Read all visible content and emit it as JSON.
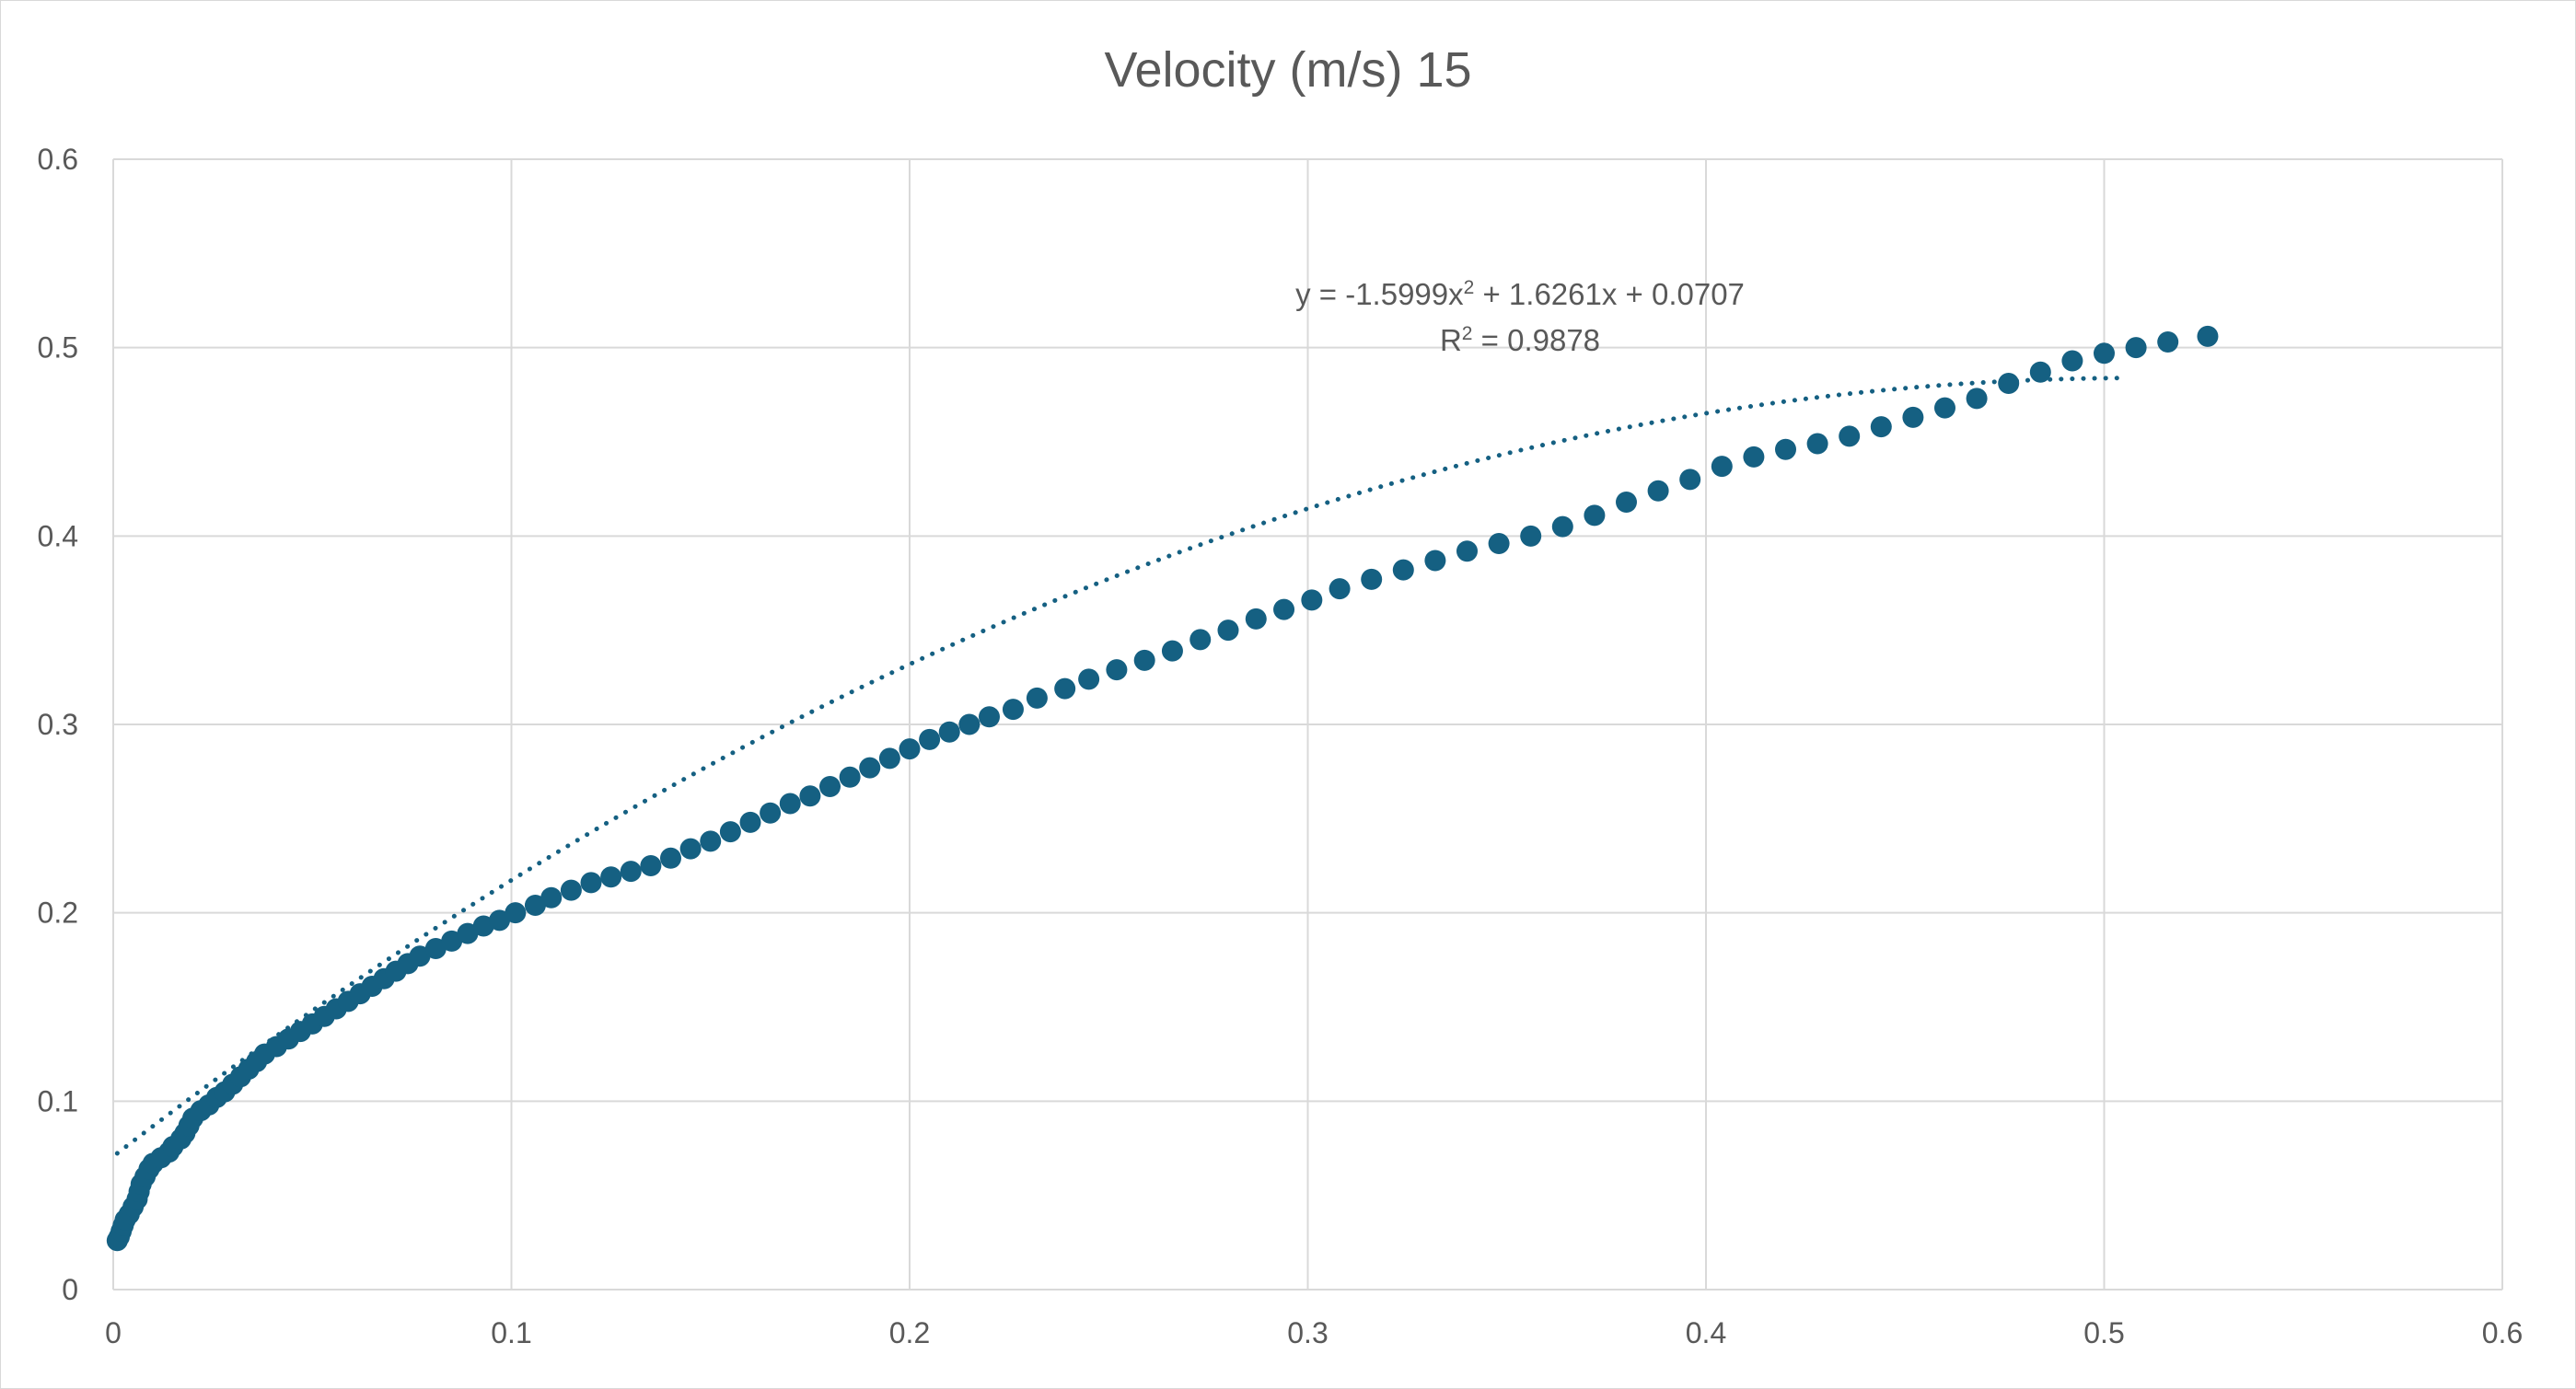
{
  "chart_data": {
    "type": "scatter",
    "title": "Velocity (m/s) 15",
    "xlabel": "",
    "ylabel": "",
    "xlim": [
      0,
      0.6
    ],
    "ylim": [
      0,
      0.6
    ],
    "x_ticks": [
      "0",
      "0.1",
      "0.2",
      "0.3",
      "0.4",
      "0.5",
      "0.6"
    ],
    "y_ticks": [
      "0",
      "0.1",
      "0.2",
      "0.3",
      "0.4",
      "0.5",
      "0.6"
    ],
    "grid": "both",
    "legend": "none",
    "colors": {
      "series": "#156082",
      "grid": "#d9d9d9",
      "text": "#595959"
    },
    "series": [
      {
        "points": [
          [
            0.001,
            0.026
          ],
          [
            0.0015,
            0.028
          ],
          [
            0.002,
            0.031
          ],
          [
            0.0025,
            0.034
          ],
          [
            0.003,
            0.037
          ],
          [
            0.004,
            0.04
          ],
          [
            0.005,
            0.044
          ],
          [
            0.006,
            0.048
          ],
          [
            0.0065,
            0.052
          ],
          [
            0.007,
            0.056
          ],
          [
            0.008,
            0.06
          ],
          [
            0.009,
            0.064
          ],
          [
            0.01,
            0.067
          ],
          [
            0.012,
            0.07
          ],
          [
            0.014,
            0.073
          ],
          [
            0.015,
            0.076
          ],
          [
            0.017,
            0.08
          ],
          [
            0.018,
            0.083
          ],
          [
            0.019,
            0.087
          ],
          [
            0.02,
            0.091
          ],
          [
            0.022,
            0.095
          ],
          [
            0.024,
            0.098
          ],
          [
            0.026,
            0.102
          ],
          [
            0.028,
            0.105
          ],
          [
            0.03,
            0.109
          ],
          [
            0.032,
            0.113
          ],
          [
            0.034,
            0.117
          ],
          [
            0.036,
            0.121
          ],
          [
            0.038,
            0.125
          ],
          [
            0.041,
            0.129
          ],
          [
            0.044,
            0.133
          ],
          [
            0.047,
            0.137
          ],
          [
            0.05,
            0.141
          ],
          [
            0.053,
            0.145
          ],
          [
            0.056,
            0.149
          ],
          [
            0.059,
            0.153
          ],
          [
            0.062,
            0.157
          ],
          [
            0.065,
            0.161
          ],
          [
            0.068,
            0.165
          ],
          [
            0.071,
            0.169
          ],
          [
            0.074,
            0.173
          ],
          [
            0.077,
            0.177
          ],
          [
            0.081,
            0.181
          ],
          [
            0.085,
            0.185
          ],
          [
            0.089,
            0.189
          ],
          [
            0.093,
            0.193
          ],
          [
            0.097,
            0.196
          ],
          [
            0.101,
            0.2
          ],
          [
            0.106,
            0.204
          ],
          [
            0.11,
            0.208
          ],
          [
            0.115,
            0.212
          ],
          [
            0.12,
            0.216
          ],
          [
            0.125,
            0.219
          ],
          [
            0.13,
            0.222
          ],
          [
            0.135,
            0.225
          ],
          [
            0.14,
            0.229
          ],
          [
            0.145,
            0.234
          ],
          [
            0.15,
            0.238
          ],
          [
            0.155,
            0.243
          ],
          [
            0.16,
            0.248
          ],
          [
            0.165,
            0.253
          ],
          [
            0.17,
            0.258
          ],
          [
            0.175,
            0.262
          ],
          [
            0.18,
            0.267
          ],
          [
            0.185,
            0.272
          ],
          [
            0.19,
            0.277
          ],
          [
            0.195,
            0.282
          ],
          [
            0.2,
            0.287
          ],
          [
            0.205,
            0.292
          ],
          [
            0.21,
            0.296
          ],
          [
            0.215,
            0.3
          ],
          [
            0.22,
            0.304
          ],
          [
            0.226,
            0.308
          ],
          [
            0.232,
            0.314
          ],
          [
            0.239,
            0.319
          ],
          [
            0.245,
            0.324
          ],
          [
            0.252,
            0.329
          ],
          [
            0.259,
            0.334
          ],
          [
            0.266,
            0.339
          ],
          [
            0.273,
            0.345
          ],
          [
            0.28,
            0.35
          ],
          [
            0.287,
            0.356
          ],
          [
            0.294,
            0.361
          ],
          [
            0.301,
            0.366
          ],
          [
            0.308,
            0.372
          ],
          [
            0.316,
            0.377
          ],
          [
            0.324,
            0.382
          ],
          [
            0.332,
            0.387
          ],
          [
            0.34,
            0.392
          ],
          [
            0.348,
            0.396
          ],
          [
            0.356,
            0.4
          ],
          [
            0.364,
            0.405
          ],
          [
            0.372,
            0.411
          ],
          [
            0.38,
            0.418
          ],
          [
            0.388,
            0.424
          ],
          [
            0.396,
            0.43
          ],
          [
            0.404,
            0.437
          ],
          [
            0.412,
            0.442
          ],
          [
            0.42,
            0.446
          ],
          [
            0.428,
            0.449
          ],
          [
            0.436,
            0.453
          ],
          [
            0.444,
            0.458
          ],
          [
            0.452,
            0.463
          ],
          [
            0.46,
            0.468
          ],
          [
            0.468,
            0.473
          ],
          [
            0.476,
            0.481
          ],
          [
            0.484,
            0.487
          ],
          [
            0.492,
            0.493
          ],
          [
            0.5,
            0.497
          ],
          [
            0.508,
            0.5
          ],
          [
            0.516,
            0.503
          ],
          [
            0.526,
            0.506
          ]
        ]
      }
    ],
    "trendline": {
      "type": "polynomial",
      "order": 2,
      "coefficients": [
        -1.5999,
        1.6261,
        0.0707
      ],
      "x_range": [
        0.001,
        0.505
      ],
      "style": "dotted"
    },
    "annotations": {
      "equation_prefix": "y = -1.5999x",
      "equation_exp": "2",
      "equation_suffix": " + 1.6261x + 0.0707",
      "r2_prefix": "R",
      "r2_exp": "2",
      "r2_suffix": " = 0.9878"
    }
  }
}
